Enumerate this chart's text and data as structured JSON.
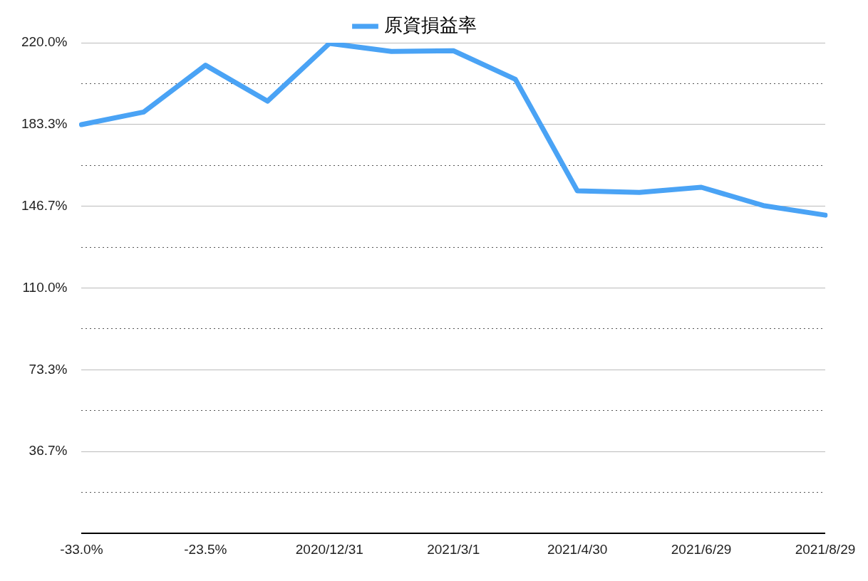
{
  "chart_data": {
    "type": "line",
    "legend": "top",
    "grid": "y",
    "marker": "none",
    "line_style": "solid",
    "categories": [
      "-33.0%",
      null,
      "-23.5%",
      null,
      "2020/12/31",
      null,
      "2021/3/1",
      null,
      "2021/4/30",
      null,
      "2021/6/29",
      null,
      "2021/8/29"
    ],
    "series": [
      {
        "name": "原資損益率",
        "color": "#4aa3f5",
        "values": [
          183.3,
          188.9,
          209.9,
          193.8,
          219.7,
          216.1,
          216.4,
          203.6,
          153.6,
          152.9,
          155.2,
          147.0,
          142.7
        ]
      }
    ],
    "ylim": [
      0,
      220
    ],
    "yticks": [
      {
        "value": 0,
        "label": null
      },
      {
        "value": 18.3,
        "label": null
      },
      {
        "value": 36.7,
        "label": "36.7%"
      },
      {
        "value": 55,
        "label": null
      },
      {
        "value": 73.3,
        "label": "73.3%"
      },
      {
        "value": 91.7,
        "label": null
      },
      {
        "value": 110,
        "label": "110.0%"
      },
      {
        "value": 128.3,
        "label": null
      },
      {
        "value": 146.7,
        "label": "146.7%"
      },
      {
        "value": 165,
        "label": null
      },
      {
        "value": 183.3,
        "label": "183.3%"
      },
      {
        "value": 201.7,
        "label": null
      },
      {
        "value": 220,
        "label": "220.0%"
      }
    ]
  }
}
